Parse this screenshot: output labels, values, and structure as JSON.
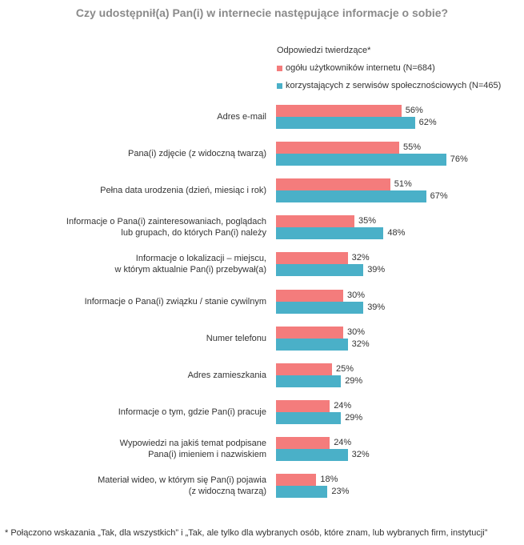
{
  "chart_data": {
    "type": "bar",
    "orientation": "horizontal",
    "title": "Czy udostępnił(a) Pan(i) w internecie następujące informacje o sobie?",
    "legend_title": "Odpowiedzi twierdzące*",
    "categories": [
      "Adres e-mail",
      "Pana(i) zdjęcie (z widoczną twarzą)",
      "Pełna data urodzenia (dzień, miesiąc i rok)",
      "Informacje o Pana(i) zainteresowaniach, poglądach\nlub grupach, do których Pan(i) należy",
      "Informacje o lokalizacji – miejscu,\nw którym aktualnie Pan(i) przebywał(a)",
      "Informacje o Pana(i) związku / stanie cywilnym",
      "Numer telefonu",
      "Adres zamieszkania",
      "Informacje o tym, gdzie Pan(i) pracuje",
      "Wypowiedzi na jakiś temat podpisane\nPana(i) imieniem i nazwiskiem",
      "Materiał wideo, w którym się Pan(i) pojawia\n(z widoczną twarzą)"
    ],
    "series": [
      {
        "name": "ogółu użytkowników internetu (N=684)",
        "color": "#f47c7c",
        "values": [
          56,
          55,
          51,
          35,
          32,
          30,
          30,
          25,
          24,
          24,
          18
        ],
        "labels": [
          "56%",
          "55%",
          "51%",
          "35%",
          "32%",
          "30%",
          "30%",
          "25%",
          "24%",
          "24%",
          "18%"
        ]
      },
      {
        "name": "korzystających z  serwisów społecznościowych (N=465)",
        "color": "#4ab0c8",
        "values": [
          62,
          76,
          67,
          48,
          39,
          39,
          32,
          29,
          29,
          32,
          23
        ],
        "labels": [
          "62%",
          "76%",
          "67%",
          "48%",
          "39%",
          "39%",
          "32%",
          "29%",
          "29%",
          "32%",
          "23%"
        ]
      }
    ],
    "xlim": [
      0,
      100
    ],
    "xlabel": "",
    "ylabel": "",
    "grid": false,
    "legend": "top-right"
  },
  "footnote": "* Połączono wskazania „Tak, dla wszystkich” i „Tak, ale tylko dla wybranych osób, które znam, lub wybranych firm, instytucji”"
}
